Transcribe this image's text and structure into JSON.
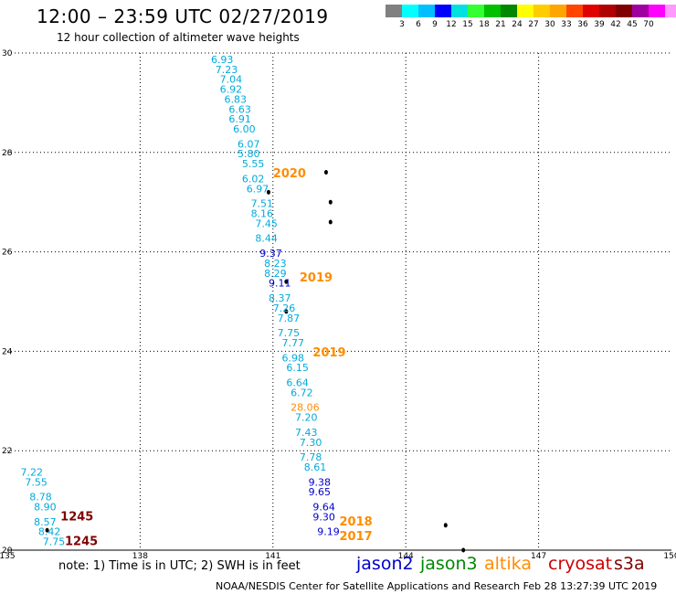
{
  "header": {
    "title": "12:00 – 23:59 UTC 02/27/2019",
    "subtitle": "12 hour collection of altimeter wave heights"
  },
  "scale": {
    "unit": "(ft)",
    "colors": [
      "#808080",
      "#00ffff",
      "#00bfff",
      "#0000ff",
      "#00e0e0",
      "#33ff33",
      "#00c000",
      "#008800",
      "#ffff00",
      "#ffcc00",
      "#ffa500",
      "#ff4500",
      "#e00000",
      "#b00000",
      "#800000",
      "#a000a0",
      "#ff00ff",
      "#ff99ff",
      "#000000"
    ],
    "labels": [
      "3",
      "6",
      "9",
      "12",
      "15",
      "18",
      "21",
      "24",
      "27",
      "30",
      "33",
      "36",
      "39",
      "42",
      "45",
      "70"
    ]
  },
  "axes": {
    "lon_ticks": [
      "135",
      "138",
      "141",
      "144",
      "147",
      "150"
    ],
    "lat_ticks": [
      "20",
      "22",
      "24",
      "26",
      "28",
      "30"
    ],
    "lon_range": [
      135,
      150
    ],
    "lat_range": [
      20,
      30
    ]
  },
  "chart_data": {
    "type": "scatter",
    "x_label": "",
    "y_label": "",
    "colors": {
      "jason2": "#0000cc",
      "jason3": "#008800",
      "altika": "#ff8c00",
      "cryosat": "#cc0000",
      "s3a": "#800000",
      "cyan": "#00aadd",
      "orange": "#ff8c00",
      "darkred": "#800000"
    },
    "swh_points": [
      {
        "lon": 139.6,
        "lat": 29.8,
        "text": "6.93",
        "color": "cyan"
      },
      {
        "lon": 139.7,
        "lat": 29.6,
        "text": "7.23",
        "color": "cyan"
      },
      {
        "lon": 139.8,
        "lat": 29.4,
        "text": "7.04",
        "color": "cyan"
      },
      {
        "lon": 139.8,
        "lat": 29.2,
        "text": "6.92",
        "color": "cyan"
      },
      {
        "lon": 139.9,
        "lat": 29.0,
        "text": "6.83",
        "color": "cyan"
      },
      {
        "lon": 140.0,
        "lat": 28.8,
        "text": "6.63",
        "color": "cyan"
      },
      {
        "lon": 140.0,
        "lat": 28.6,
        "text": "6.91",
        "color": "cyan"
      },
      {
        "lon": 140.1,
        "lat": 28.4,
        "text": "6.00",
        "color": "cyan"
      },
      {
        "lon": 140.2,
        "lat": 28.1,
        "text": "6.07",
        "color": "cyan"
      },
      {
        "lon": 140.2,
        "lat": 27.9,
        "text": "5.80",
        "color": "cyan"
      },
      {
        "lon": 140.3,
        "lat": 27.7,
        "text": "5.55",
        "color": "cyan"
      },
      {
        "lon": 140.3,
        "lat": 27.4,
        "text": "6.02",
        "color": "cyan"
      },
      {
        "lon": 140.4,
        "lat": 27.2,
        "text": "6.97",
        "color": "cyan"
      },
      {
        "lon": 140.5,
        "lat": 26.9,
        "text": "7.51",
        "color": "cyan"
      },
      {
        "lon": 140.5,
        "lat": 26.7,
        "text": "8.16",
        "color": "cyan"
      },
      {
        "lon": 140.6,
        "lat": 26.5,
        "text": "7.45",
        "color": "cyan"
      },
      {
        "lon": 140.6,
        "lat": 26.2,
        "text": "8.44",
        "color": "cyan"
      },
      {
        "lon": 140.7,
        "lat": 25.9,
        "text": "9.37",
        "color": "jason2"
      },
      {
        "lon": 140.8,
        "lat": 25.7,
        "text": "8.23",
        "color": "cyan"
      },
      {
        "lon": 140.8,
        "lat": 25.5,
        "text": "8.29",
        "color": "cyan"
      },
      {
        "lon": 140.9,
        "lat": 25.3,
        "text": "9.11",
        "color": "jason2"
      },
      {
        "lon": 140.9,
        "lat": 25.0,
        "text": "8.37",
        "color": "cyan"
      },
      {
        "lon": 141.0,
        "lat": 24.8,
        "text": "7.26",
        "color": "cyan"
      },
      {
        "lon": 141.1,
        "lat": 24.6,
        "text": "7.87",
        "color": "cyan"
      },
      {
        "lon": 141.1,
        "lat": 24.3,
        "text": "7.75",
        "color": "cyan"
      },
      {
        "lon": 141.2,
        "lat": 24.1,
        "text": "7.77",
        "color": "cyan"
      },
      {
        "lon": 141.2,
        "lat": 23.8,
        "text": "6.98",
        "color": "cyan"
      },
      {
        "lon": 141.3,
        "lat": 23.6,
        "text": "6.15",
        "color": "cyan"
      },
      {
        "lon": 141.3,
        "lat": 23.3,
        "text": "6.64",
        "color": "cyan"
      },
      {
        "lon": 141.4,
        "lat": 23.1,
        "text": "6.72",
        "color": "cyan"
      },
      {
        "lon": 141.4,
        "lat": 22.8,
        "text": "28.06",
        "color": "orange"
      },
      {
        "lon": 141.5,
        "lat": 22.6,
        "text": "7.20",
        "color": "cyan"
      },
      {
        "lon": 141.5,
        "lat": 22.3,
        "text": "7.43",
        "color": "cyan"
      },
      {
        "lon": 141.6,
        "lat": 22.1,
        "text": "7.30",
        "color": "cyan"
      },
      {
        "lon": 141.6,
        "lat": 21.8,
        "text": "7.78",
        "color": "cyan"
      },
      {
        "lon": 141.7,
        "lat": 21.6,
        "text": "8.61",
        "color": "cyan"
      },
      {
        "lon": 141.8,
        "lat": 21.3,
        "text": "9.38",
        "color": "jason2"
      },
      {
        "lon": 141.8,
        "lat": 21.1,
        "text": "9.65",
        "color": "jason2"
      },
      {
        "lon": 141.9,
        "lat": 20.8,
        "text": "9.64",
        "color": "jason2"
      },
      {
        "lon": 141.9,
        "lat": 20.6,
        "text": "9.30",
        "color": "jason2"
      },
      {
        "lon": 142.0,
        "lat": 20.3,
        "text": "9.19",
        "color": "jason2"
      },
      {
        "lon": 135.3,
        "lat": 21.5,
        "text": "7.22",
        "color": "cyan"
      },
      {
        "lon": 135.4,
        "lat": 21.3,
        "text": "7.55",
        "color": "cyan"
      },
      {
        "lon": 135.5,
        "lat": 21.0,
        "text": "8.78",
        "color": "cyan"
      },
      {
        "lon": 135.6,
        "lat": 20.8,
        "text": "8.90",
        "color": "cyan"
      },
      {
        "lon": 135.6,
        "lat": 20.5,
        "text": "8.57",
        "color": "cyan"
      },
      {
        "lon": 135.7,
        "lat": 20.3,
        "text": "8.42",
        "color": "cyan"
      },
      {
        "lon": 135.8,
        "lat": 20.1,
        "text": "7.75",
        "color": "cyan"
      }
    ],
    "time_labels": [
      {
        "lon": 141.0,
        "lat": 27.5,
        "text": "2020",
        "color": "orange"
      },
      {
        "lon": 141.6,
        "lat": 25.4,
        "text": "2019",
        "color": "orange"
      },
      {
        "lon": 141.9,
        "lat": 23.9,
        "text": "2019",
        "color": "orange"
      },
      {
        "lon": 142.5,
        "lat": 20.5,
        "text": "2018",
        "color": "orange"
      },
      {
        "lon": 142.5,
        "lat": 20.2,
        "text": "2017",
        "color": "orange"
      },
      {
        "lon": 136.2,
        "lat": 20.6,
        "text": "1245",
        "color": "darkred"
      },
      {
        "lon": 136.3,
        "lat": 20.1,
        "text": "1245",
        "color": "darkred"
      }
    ],
    "islands": [
      {
        "lon": 142.2,
        "lat": 27.6
      },
      {
        "lon": 142.3,
        "lat": 27.0
      },
      {
        "lon": 142.3,
        "lat": 26.6
      },
      {
        "lon": 141.3,
        "lat": 25.4
      },
      {
        "lon": 141.3,
        "lat": 24.8
      },
      {
        "lon": 140.9,
        "lat": 27.2
      },
      {
        "lon": 135.9,
        "lat": 20.4
      },
      {
        "lon": 144.9,
        "lat": 20.5
      },
      {
        "lon": 145.3,
        "lat": 20.0
      }
    ]
  },
  "footer": {
    "note": "note: 1) Time is in UTC; 2) SWH is in feet",
    "legend": [
      {
        "label": "jason2",
        "color": "#0000cc"
      },
      {
        "label": "jason3",
        "color": "#008800"
      },
      {
        "label": "altika",
        "color": "#ff8c00"
      },
      {
        "label": "cryosat",
        "color": "#cc0000"
      },
      {
        "label": "s3a",
        "color": "#800000"
      }
    ],
    "credit": "NOAA/NESDIS Center for Satellite Applications and Research    Feb 28 13:27:39 UTC 2019"
  }
}
